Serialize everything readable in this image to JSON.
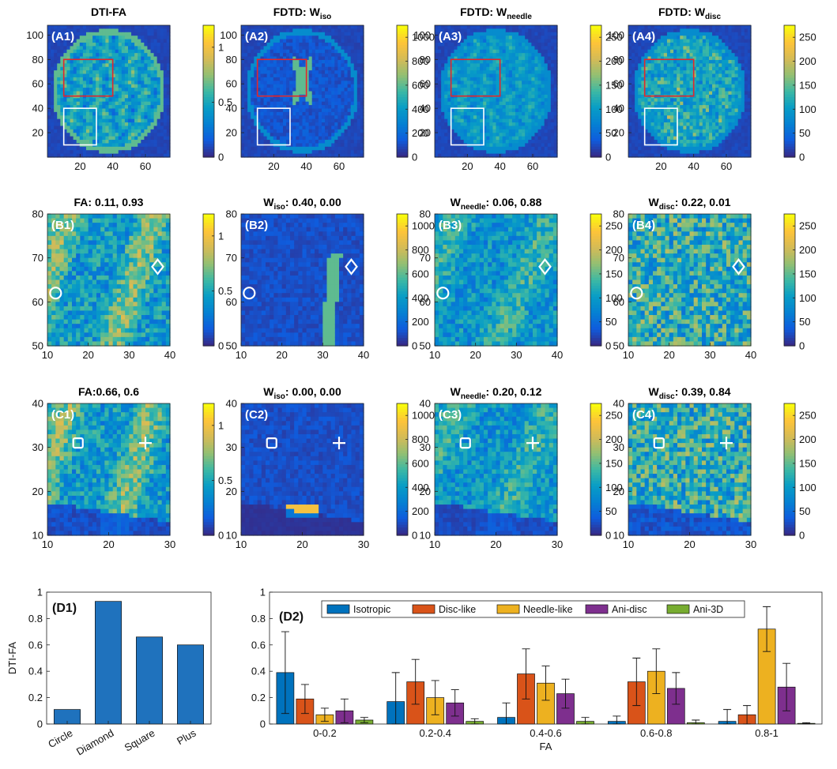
{
  "chart_data": {
    "type": "heatmap",
    "colormap": "parula",
    "colors": {
      "roi_red": "#e3262b",
      "roi_white": "#ffffff",
      "bar_blue": "#1f72bd",
      "isotropic": "#0072bd",
      "disc": "#d95319",
      "needle": "#edb120",
      "ani_disc": "#7e2f8e",
      "ani_3d": "#77ac30"
    },
    "columns": [
      {
        "title": "DTI-FA",
        "title_base": "",
        "title_sub": "",
        "cbar_ticks": [
          "0",
          "0.5",
          "1"
        ],
        "cbar_max": 1.2
      },
      {
        "title": "",
        "title_base": "FDTD: W",
        "title_sub": "iso",
        "cbar_ticks": [
          "0",
          "200",
          "400",
          "600",
          "800",
          "1000"
        ],
        "cbar_max": 1100
      },
      {
        "title": "",
        "title_base": "FDTD: W",
        "title_sub": "needle",
        "cbar_ticks": [
          "0",
          "50",
          "100",
          "150",
          "200",
          "250"
        ],
        "cbar_max": 275
      },
      {
        "title": "",
        "title_base": "FDTD: W",
        "title_sub": "disc",
        "cbar_ticks": [
          "0",
          "50",
          "100",
          "150",
          "200",
          "250"
        ],
        "cbar_max": 275
      }
    ],
    "rows": [
      {
        "id": "A",
        "x_ticks": [
          "20",
          "40",
          "60"
        ],
        "y_ticks": [
          "20",
          "40",
          "60",
          "80",
          "100"
        ],
        "xlim": [
          0,
          75
        ],
        "ylim": [
          0,
          108
        ]
      },
      {
        "id": "B",
        "x_ticks": [
          "10",
          "20",
          "30",
          "40"
        ],
        "y_ticks": [
          "50",
          "60",
          "70",
          "80"
        ],
        "xlim": [
          10,
          40
        ],
        "ylim": [
          50,
          80
        ]
      },
      {
        "id": "C",
        "x_ticks": [
          "10",
          "20",
          "30"
        ],
        "y_ticks": [
          "10",
          "20",
          "30",
          "40"
        ],
        "xlim": [
          10,
          30
        ],
        "ylim": [
          10,
          40
        ]
      }
    ],
    "panel_labels": [
      [
        "(A1)",
        "(A2)",
        "(A3)",
        "(A4)"
      ],
      [
        "(B1)",
        "(B2)",
        "(B3)",
        "(B4)"
      ],
      [
        "(C1)",
        "(C2)",
        "(C3)",
        "(C4)"
      ]
    ],
    "row_b_titles": [
      {
        "base": "FA",
        "sub": "",
        "rest": ": 0.11, 0.93"
      },
      {
        "base": "W",
        "sub": "iso",
        "rest": ": 0.40, 0.00"
      },
      {
        "base": "W",
        "sub": "needle",
        "rest": ": 0.06, 0.88"
      },
      {
        "base": "W",
        "sub": "disc",
        "rest": ": 0.22, 0.01"
      }
    ],
    "row_c_titles": [
      {
        "base": "FA",
        "sub": "",
        "rest": ":0.66, 0.6"
      },
      {
        "base": "W",
        "sub": "iso",
        "rest": ": 0.00, 0.00"
      },
      {
        "base": "W",
        "sub": "needle",
        "rest": ": 0.20, 0.12"
      },
      {
        "base": "W",
        "sub": "disc",
        "rest": ": 0.39, 0.84"
      }
    ],
    "roi_boxes": {
      "red": {
        "x": [
          10,
          40
        ],
        "y": [
          50,
          80
        ]
      },
      "white": {
        "x": [
          10,
          30
        ],
        "y": [
          10,
          40
        ]
      }
    },
    "markers": {
      "circle": {
        "x": 12,
        "y": 62
      },
      "diamond": {
        "x": 37,
        "y": 68
      },
      "square": {
        "x": 15,
        "y": 31
      },
      "plus": {
        "x": 26,
        "y": 31
      }
    },
    "d1": {
      "label": "(D1)",
      "type": "bar",
      "categories": [
        "Circle",
        "Diamond",
        "Square",
        "Plus"
      ],
      "values": [
        0.11,
        0.93,
        0.66,
        0.6
      ],
      "ylabel": "DTI-FA",
      "ylim": [
        0,
        1
      ],
      "y_ticks": [
        "0",
        "0.2",
        "0.4",
        "0.6",
        "0.8",
        "1"
      ]
    },
    "d2": {
      "label": "(D2)",
      "type": "bar",
      "xlabel": "FA",
      "ylim": [
        0,
        1
      ],
      "y_ticks": [
        "0",
        "0.2",
        "0.4",
        "0.6",
        "0.8",
        "1"
      ],
      "categories": [
        "0-0.2",
        "0.2-0.4",
        "0.4-0.6",
        "0.6-0.8",
        "0.8-1"
      ],
      "series": [
        {
          "name": "Isotropic",
          "values": [
            0.39,
            0.17,
            0.05,
            0.02,
            0.02
          ],
          "errors": [
            0.31,
            0.22,
            0.11,
            0.04,
            0.09
          ]
        },
        {
          "name": "Disc-like",
          "values": [
            0.19,
            0.32,
            0.38,
            0.32,
            0.07
          ],
          "errors": [
            0.11,
            0.17,
            0.19,
            0.18,
            0.07
          ]
        },
        {
          "name": "Needle-like",
          "values": [
            0.07,
            0.2,
            0.31,
            0.4,
            0.72
          ],
          "errors": [
            0.05,
            0.13,
            0.13,
            0.17,
            0.17
          ]
        },
        {
          "name": "Ani-disc",
          "values": [
            0.1,
            0.16,
            0.23,
            0.27,
            0.28
          ],
          "errors": [
            0.09,
            0.1,
            0.11,
            0.12,
            0.18
          ]
        },
        {
          "name": "Ani-3D",
          "values": [
            0.03,
            0.02,
            0.02,
            0.01,
            0.005
          ],
          "errors": [
            0.02,
            0.02,
            0.03,
            0.02,
            0.005
          ]
        }
      ]
    }
  }
}
